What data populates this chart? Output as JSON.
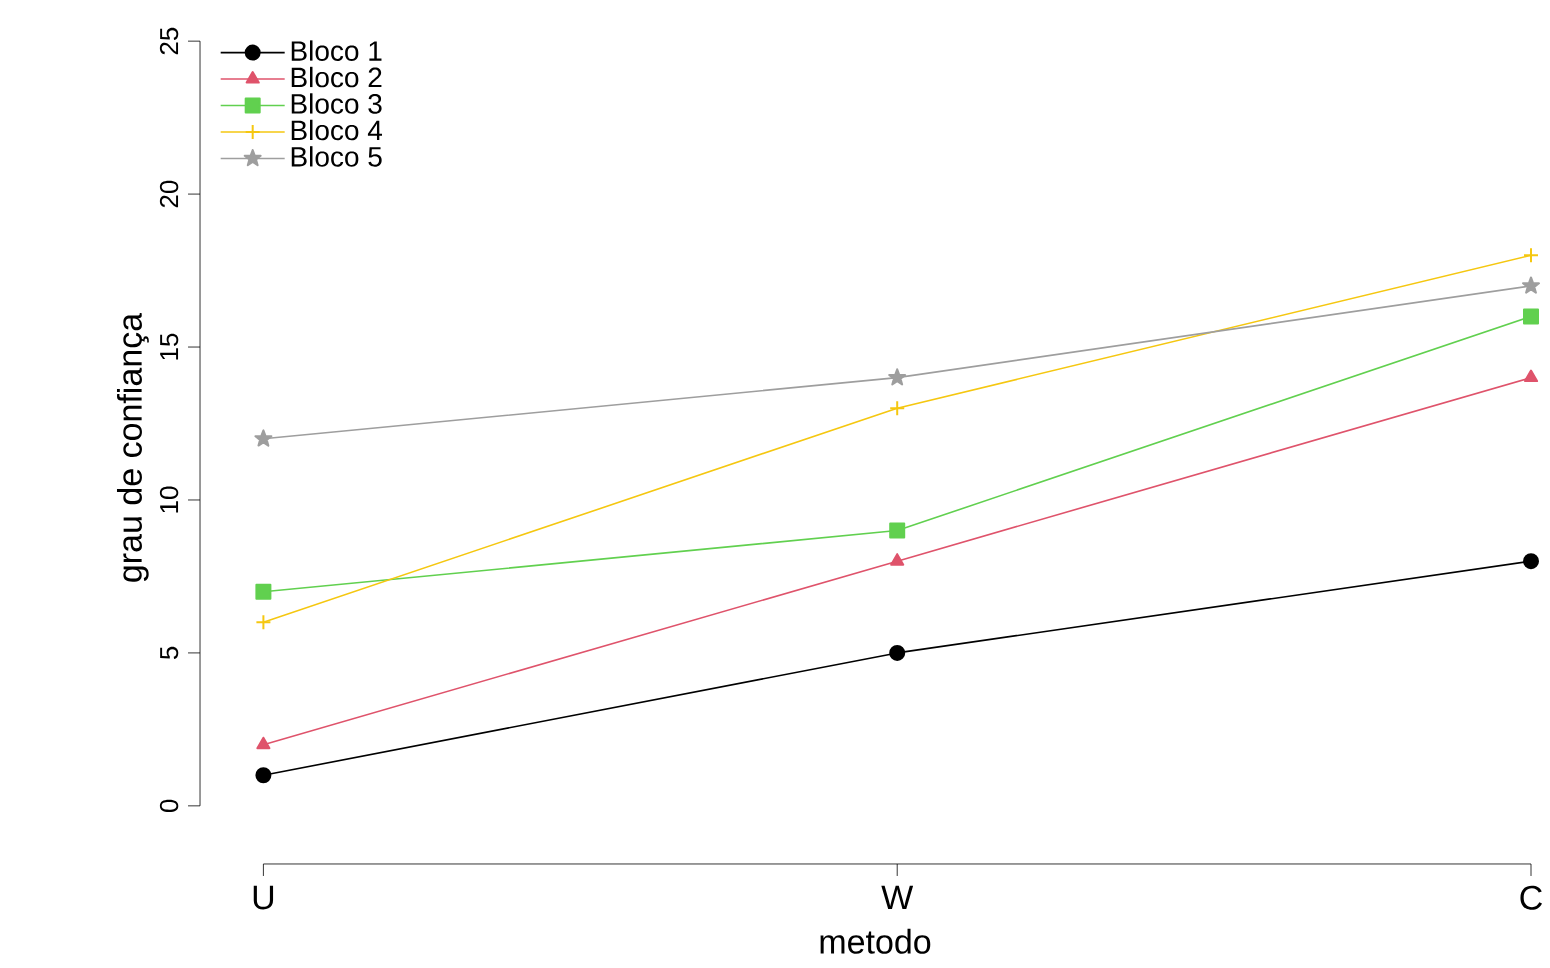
{
  "chart_data": {
    "type": "line",
    "xlabel": "metodo",
    "ylabel": "grau de confiança",
    "categories": [
      "U",
      "W",
      "C"
    ],
    "ylim": [
      0,
      25
    ],
    "yticks": [
      0,
      5,
      10,
      15,
      20,
      25
    ],
    "legend": "top left",
    "grid": false,
    "line_style": "solid",
    "series": [
      {
        "name": "Bloco 1",
        "color": "#000000",
        "marker": "circle",
        "values": [
          1,
          5,
          8
        ]
      },
      {
        "name": "Bloco 2",
        "color": "#DF536B",
        "marker": "triangle",
        "values": [
          2,
          8,
          14
        ]
      },
      {
        "name": "Bloco 3",
        "color": "#61D04F",
        "marker": "square",
        "values": [
          7,
          9,
          16
        ]
      },
      {
        "name": "Bloco 4",
        "color": "#F5C710",
        "marker": "cross",
        "values": [
          6,
          13,
          18
        ]
      },
      {
        "name": "Bloco 5",
        "color": "#9E9E9E",
        "marker": "star",
        "values": [
          12,
          14,
          17
        ]
      }
    ]
  }
}
